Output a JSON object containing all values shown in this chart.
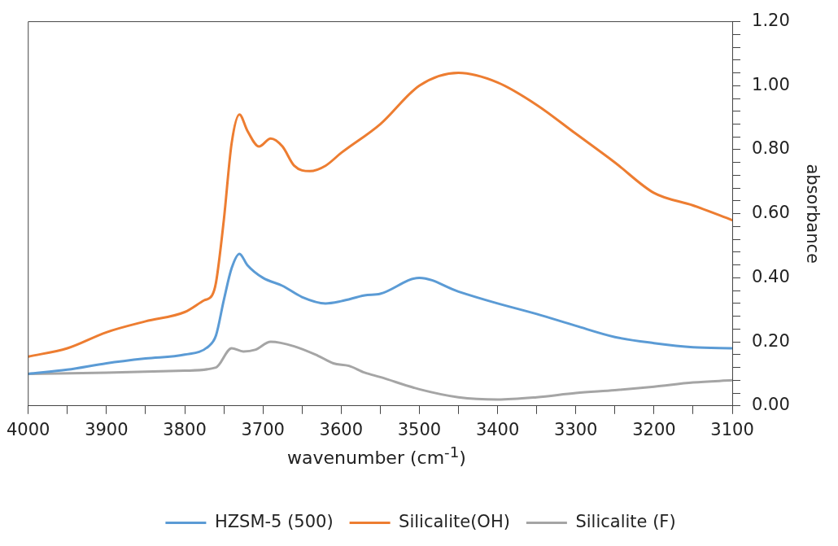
{
  "chart_data": {
    "type": "line",
    "xlabel": "wavenumber (cm$^{-1}$)",
    "ylabel": "absorbance",
    "xlim": [
      4000,
      3100
    ],
    "xticks": [
      4000,
      {
        "value": 3950,
        "label": null
      },
      3900,
      {
        "value": 3850,
        "label": null
      },
      3800,
      {
        "value": 3750,
        "label": null
      },
      3700,
      {
        "value": 3650,
        "label": null
      },
      3600,
      {
        "value": 3550,
        "label": null
      },
      3500,
      {
        "value": 3450,
        "label": null
      },
      3400,
      {
        "value": 3350,
        "label": null
      },
      3300,
      {
        "value": 3250,
        "label": null
      },
      3200,
      {
        "value": 3150,
        "label": null
      },
      3100
    ],
    "ylim": [
      0,
      1.2
    ],
    "yticks": [
      {
        "value": 0,
        "label": "0.00"
      },
      {
        "value": 0.04,
        "label": null
      },
      {
        "value": 0.08,
        "label": null
      },
      {
        "value": 0.12,
        "label": null
      },
      {
        "value": 0.16,
        "label": null
      },
      {
        "value": 0.2,
        "label": "0.20"
      },
      {
        "value": 0.24,
        "label": null
      },
      {
        "value": 0.28,
        "label": null
      },
      {
        "value": 0.32,
        "label": null
      },
      {
        "value": 0.36,
        "label": null
      },
      {
        "value": 0.4,
        "label": "0.40"
      },
      {
        "value": 0.44,
        "label": null
      },
      {
        "value": 0.48,
        "label": null
      },
      {
        "value": 0.52,
        "label": null
      },
      {
        "value": 0.56,
        "label": null
      },
      {
        "value": 0.6,
        "label": "0.60"
      },
      {
        "value": 0.64,
        "label": null
      },
      {
        "value": 0.68,
        "label": null
      },
      {
        "value": 0.72,
        "label": null
      },
      {
        "value": 0.76,
        "label": null
      },
      {
        "value": 0.8,
        "label": "0.80"
      },
      {
        "value": 0.84,
        "label": null
      },
      {
        "value": 0.88,
        "label": null
      },
      {
        "value": 0.92,
        "label": null
      },
      {
        "value": 0.96,
        "label": null
      },
      {
        "value": 1.0,
        "label": "1.00"
      },
      {
        "value": 1.04,
        "label": null
      },
      {
        "value": 1.08,
        "label": null
      },
      {
        "value": 1.12,
        "label": null
      },
      {
        "value": 1.16,
        "label": null
      },
      {
        "value": 1.2,
        "label": "1.20"
      }
    ],
    "grid": false,
    "legend": "bottom",
    "marker": "none",
    "line_style": "solid",
    "series": [
      {
        "name": "HZSM-5 (500)",
        "color": "#5b9bd5",
        "x": [
          4000,
          3950,
          3900,
          3850,
          3800,
          3770,
          3760,
          3750,
          3740,
          3730,
          3720,
          3700,
          3675,
          3650,
          3620,
          3600,
          3570,
          3550,
          3500,
          3450,
          3400,
          3350,
          3300,
          3250,
          3200,
          3150,
          3100
        ],
        "values": [
          0.1,
          0.113,
          0.133,
          0.148,
          0.16,
          0.185,
          0.22,
          0.33,
          0.43,
          0.475,
          0.44,
          0.4,
          0.375,
          0.34,
          0.32,
          0.327,
          0.345,
          0.35,
          0.4,
          0.357,
          0.32,
          0.287,
          0.25,
          0.215,
          0.196,
          0.183,
          0.18
        ]
      },
      {
        "name": "Silicalite(OH)",
        "color": "#ed7d31",
        "x": [
          4000,
          3950,
          3900,
          3850,
          3800,
          3775,
          3765,
          3760,
          3750,
          3740,
          3730,
          3720,
          3705,
          3690,
          3675,
          3660,
          3640,
          3620,
          3600,
          3550,
          3500,
          3450,
          3400,
          3350,
          3300,
          3250,
          3200,
          3150,
          3100
        ],
        "values": [
          0.154,
          0.18,
          0.23,
          0.264,
          0.293,
          0.33,
          0.345,
          0.385,
          0.58,
          0.82,
          0.91,
          0.86,
          0.81,
          0.835,
          0.81,
          0.75,
          0.733,
          0.75,
          0.79,
          0.88,
          1.0,
          1.04,
          1.01,
          0.94,
          0.85,
          0.76,
          0.665,
          0.626,
          0.58
        ]
      },
      {
        "name": "Silicalite (F)",
        "color": "#a5a5a5",
        "x": [
          4000,
          3900,
          3800,
          3760,
          3740,
          3725,
          3710,
          3690,
          3660,
          3630,
          3610,
          3590,
          3570,
          3550,
          3500,
          3450,
          3400,
          3350,
          3300,
          3250,
          3200,
          3150,
          3100
        ],
        "values": [
          0.1,
          0.104,
          0.11,
          0.12,
          0.18,
          0.17,
          0.175,
          0.2,
          0.186,
          0.157,
          0.133,
          0.125,
          0.104,
          0.09,
          0.052,
          0.027,
          0.02,
          0.027,
          0.04,
          0.049,
          0.06,
          0.073,
          0.08
        ]
      }
    ]
  }
}
